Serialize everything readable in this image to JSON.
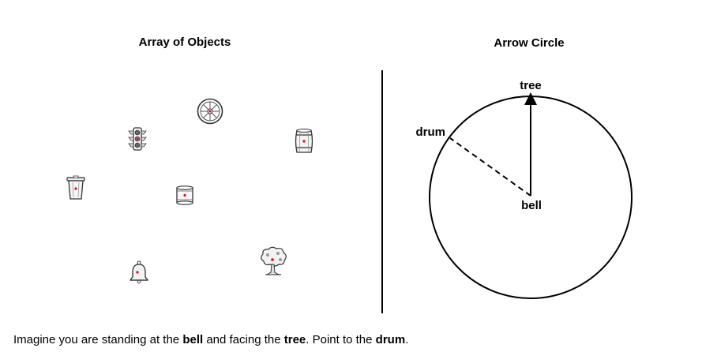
{
  "panels": {
    "left_title": "Array of Objects",
    "right_title": "Arrow Circle"
  },
  "objects": [
    {
      "name": "wheel",
      "icon": "wheel-icon"
    },
    {
      "name": "traffic light",
      "icon": "traffic-light-icon"
    },
    {
      "name": "barrel",
      "icon": "barrel-icon"
    },
    {
      "name": "trash can",
      "icon": "trash-can-icon"
    },
    {
      "name": "drum",
      "icon": "drum-icon"
    },
    {
      "name": "tree",
      "icon": "tree-icon"
    },
    {
      "name": "bell",
      "icon": "bell-icon"
    }
  ],
  "arrow_circle": {
    "center_label": "bell",
    "top_label": "tree",
    "answer_label": "drum"
  },
  "instruction": {
    "prefix": "Imagine you are standing at the ",
    "standing_object": "bell",
    "middle": " and facing the ",
    "facing_object": "tree",
    "point_text": ". Point to the ",
    "target_object": "drum",
    "suffix": "."
  },
  "colors": {
    "marker": "#e8001c",
    "stroke": "#000000"
  }
}
